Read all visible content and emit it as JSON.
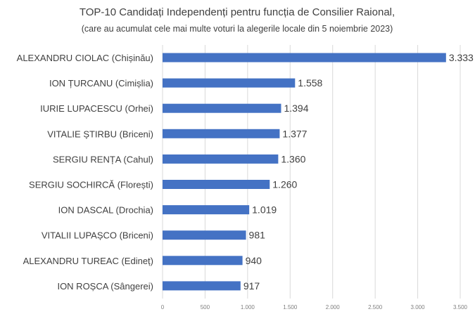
{
  "chart_data": {
    "type": "bar",
    "orientation": "horizontal",
    "title": "TOP-10 Candidați Independenți pentru funcția de Consilier Raional,",
    "subtitle": "(care au acumulat cele mai multe voturi la alegerile locale din 5 noiembrie 2023)",
    "categories": [
      "ALEXANDRU CIOLAC (Chișinău)",
      "ION ȚURCANU (Cimișlia)",
      "IURIE LUPACESCU (Orhei)",
      "VITALIE ȘTIRBU (Briceni)",
      "SERGIU RENȚA (Cahul)",
      "SERGIU SOCHIRCĂ (Florești)",
      "ION DASCAL (Drochia)",
      "VITALII LUPAȘCO (Briceni)",
      "ALEXANDRU TUREAC (Edineț)",
      "ION ROȘCA (Sângerei)"
    ],
    "values": [
      3333,
      1558,
      1394,
      1377,
      1360,
      1260,
      1019,
      981,
      940,
      917
    ],
    "value_labels": [
      "3.333",
      "1.558",
      "1.394",
      "1.377",
      "1.360",
      "1.260",
      "1.019",
      "981",
      "940",
      "917"
    ],
    "xlim": [
      0,
      3500
    ],
    "xticks": [
      0,
      500,
      1000,
      1500,
      2000,
      2500,
      3000,
      3500
    ],
    "xtick_labels": [
      "0",
      "500",
      "1.000",
      "1.500",
      "2.000",
      "2.500",
      "3.000",
      "3.500"
    ],
    "grid": true,
    "bar_color": "#4472c4",
    "grid_color": "#d9d9d9"
  }
}
